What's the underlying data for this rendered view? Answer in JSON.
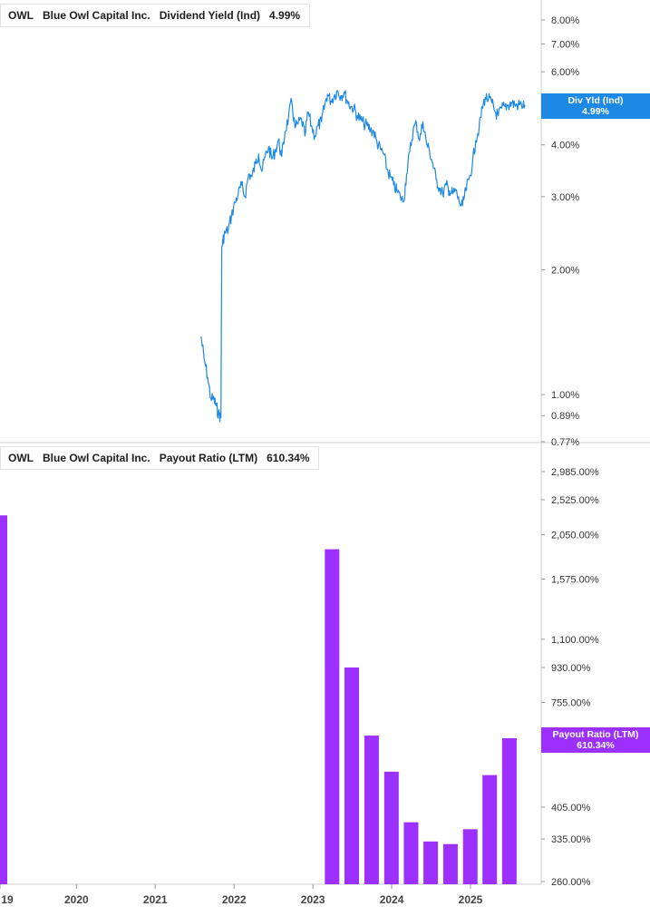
{
  "chart_data": [
    {
      "type": "line",
      "legend": {
        "ticker": "OWL",
        "company": "Blue Owl Capital Inc.",
        "metric": "Dividend Yield (Ind)",
        "value": "4.99%"
      },
      "current_tag": {
        "label": "Div Yld (Ind)",
        "value": "4.99%"
      },
      "y_scale": "log",
      "ylim": [
        0.77,
        9.0
      ],
      "y_ticks": [
        "8.00%",
        "7.00%",
        "6.00%",
        "5.00%",
        "4.00%",
        "3.00%",
        "2.00%",
        "1.00%",
        "0.89%",
        "0.77%"
      ],
      "y_tick_values": [
        8.0,
        7.0,
        6.0,
        5.0,
        4.0,
        3.0,
        2.0,
        1.0,
        0.89,
        0.77
      ],
      "color": "#1e88e5",
      "series": [
        {
          "x": [
            "2021-08-01",
            "2021-08-15",
            "2021-09-01",
            "2021-09-15",
            "2021-10-01",
            "2021-10-10",
            "2021-10-20",
            "2021-11-01",
            "2021-11-05",
            "2021-11-10",
            "2021-11-20",
            "2021-12-05",
            "2021-12-20",
            "2022-01-05",
            "2022-01-20",
            "2022-02-05",
            "2022-02-20",
            "2022-03-10",
            "2022-03-25",
            "2022-04-10",
            "2022-04-25",
            "2022-05-10",
            "2022-05-25",
            "2022-06-10",
            "2022-06-25",
            "2022-07-10",
            "2022-07-25",
            "2022-08-10",
            "2022-08-25",
            "2022-09-10",
            "2022-09-25",
            "2022-10-10",
            "2022-10-25",
            "2022-11-10",
            "2022-11-25",
            "2022-12-10",
            "2022-12-25",
            "2023-01-10",
            "2023-01-25",
            "2023-02-10",
            "2023-02-25",
            "2023-03-10",
            "2023-03-25",
            "2023-04-10",
            "2023-04-25",
            "2023-05-10",
            "2023-05-25",
            "2023-06-10",
            "2023-06-25",
            "2023-07-10",
            "2023-07-25",
            "2023-08-10",
            "2023-08-25",
            "2023-09-10",
            "2023-09-25",
            "2023-10-10",
            "2023-10-25",
            "2023-11-10",
            "2023-11-25",
            "2023-12-10",
            "2023-12-25",
            "2024-01-10",
            "2024-01-25",
            "2024-02-10",
            "2024-02-25",
            "2024-03-10",
            "2024-03-25",
            "2024-04-10",
            "2024-04-25",
            "2024-05-10",
            "2024-05-25",
            "2024-06-10",
            "2024-06-25",
            "2024-07-10",
            "2024-07-25",
            "2024-08-10",
            "2024-08-25",
            "2024-09-10",
            "2024-09-25",
            "2024-10-10",
            "2024-10-25",
            "2024-11-10",
            "2024-11-25",
            "2024-12-10",
            "2024-12-25",
            "2025-01-10",
            "2025-01-25",
            "2025-02-10",
            "2025-02-25",
            "2025-03-10",
            "2025-03-25",
            "2025-04-10",
            "2025-04-25",
            "2025-05-10",
            "2025-05-25",
            "2025-06-10",
            "2025-06-25",
            "2025-07-10",
            "2025-07-25",
            "2025-08-10",
            "2025-08-25",
            "2025-09-10"
          ],
          "values": [
            1.38,
            1.22,
            1.1,
            0.98,
            0.97,
            0.94,
            0.9,
            0.88,
            2.25,
            2.35,
            2.45,
            2.5,
            2.7,
            2.9,
            3.05,
            3.2,
            3.0,
            3.4,
            3.35,
            3.6,
            3.8,
            3.45,
            3.75,
            3.95,
            3.7,
            3.85,
            4.1,
            3.75,
            4.3,
            4.65,
            5.1,
            4.4,
            4.5,
            4.6,
            4.2,
            4.8,
            4.45,
            4.2,
            4.45,
            4.55,
            5.0,
            5.3,
            5.1,
            5.25,
            5.4,
            5.25,
            5.35,
            5.1,
            4.95,
            4.9,
            4.7,
            4.6,
            4.5,
            4.45,
            4.35,
            4.3,
            4.05,
            3.9,
            3.8,
            3.5,
            3.35,
            3.2,
            3.1,
            3.0,
            2.92,
            3.4,
            3.85,
            4.35,
            4.5,
            4.1,
            4.55,
            4.05,
            3.85,
            3.6,
            3.3,
            3.15,
            3.05,
            3.2,
            3.1,
            3.05,
            3.1,
            2.9,
            2.85,
            3.1,
            3.3,
            3.6,
            4.1,
            4.4,
            4.9,
            5.2,
            5.15,
            5.05,
            4.8,
            4.7,
            4.9,
            4.95,
            4.99,
            5.05,
            5.0,
            4.99,
            4.99,
            4.99
          ]
        }
      ]
    },
    {
      "type": "bar",
      "legend": {
        "ticker": "OWL",
        "company": "Blue Owl Capital Inc.",
        "metric": "Payout Ratio (LTM)",
        "value": "610.34%"
      },
      "current_tag": {
        "label": "Payout Ratio (LTM)",
        "value": "610.34%"
      },
      "y_scale": "log",
      "ylim": [
        260,
        3300
      ],
      "y_ticks": [
        "2,985.00%",
        "2,525.00%",
        "2,050.00%",
        "1,575.00%",
        "1,100.00%",
        "930.00%",
        "755.00%",
        "580.00%",
        "405.00%",
        "335.00%",
        "260.00%"
      ],
      "y_tick_values": [
        2985,
        2525,
        2050,
        1575,
        1100,
        930,
        755,
        580,
        405,
        335,
        260
      ],
      "color": "#9b30ff",
      "x_ticks": [
        "19",
        "2020",
        "2021",
        "2022",
        "2023",
        "2024",
        "2025"
      ],
      "x_tick_years": [
        2019.03,
        2020,
        2021,
        2022,
        2023,
        2024,
        2025
      ],
      "series": [
        {
          "x": [
            "2019-01-01",
            "2023-03-31",
            "2023-06-30",
            "2023-09-30",
            "2023-12-31",
            "2024-03-31",
            "2024-06-30",
            "2024-09-30",
            "2024-12-31",
            "2025-03-31",
            "2025-06-30"
          ],
          "values": [
            2300,
            1880,
            930,
            620,
            500,
            370,
            330,
            325,
            355,
            490,
            610.34
          ]
        }
      ]
    }
  ]
}
